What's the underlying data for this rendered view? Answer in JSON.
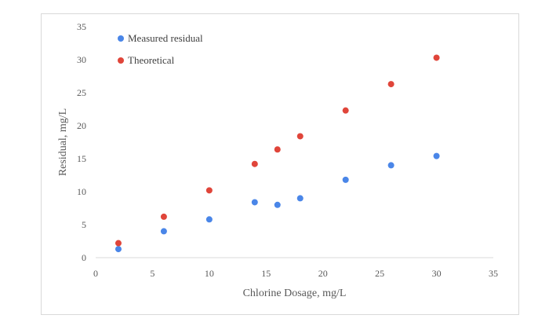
{
  "chart_data": {
    "type": "scatter",
    "title": "",
    "xlabel": "Chlorine Dosage, mg/L",
    "ylabel": "Residual, mg/L",
    "xlim": [
      0,
      35
    ],
    "ylim": [
      0,
      35
    ],
    "xticks": [
      0,
      5,
      10,
      15,
      20,
      25,
      30,
      35
    ],
    "yticks": [
      0,
      5,
      10,
      15,
      20,
      25,
      30,
      35
    ],
    "grid": false,
    "legend_position": "top-left",
    "series": [
      {
        "name": "Measured residual",
        "color": "#4a86e8",
        "points": [
          {
            "x": 2,
            "y": 1.3
          },
          {
            "x": 6,
            "y": 4
          },
          {
            "x": 10,
            "y": 5.8
          },
          {
            "x": 14,
            "y": 8.4
          },
          {
            "x": 16,
            "y": 8
          },
          {
            "x": 18,
            "y": 9
          },
          {
            "x": 22,
            "y": 11.8
          },
          {
            "x": 26,
            "y": 14
          },
          {
            "x": 30,
            "y": 15.4
          }
        ]
      },
      {
        "name": "Theoretical",
        "color": "#e0453a",
        "points": [
          {
            "x": 2,
            "y": 2.2
          },
          {
            "x": 6,
            "y": 6.2
          },
          {
            "x": 10,
            "y": 10.2
          },
          {
            "x": 14,
            "y": 14.2
          },
          {
            "x": 16,
            "y": 16.4
          },
          {
            "x": 18,
            "y": 18.4
          },
          {
            "x": 22,
            "y": 22.3
          },
          {
            "x": 26,
            "y": 26.3
          },
          {
            "x": 30,
            "y": 30.3
          }
        ]
      }
    ]
  }
}
